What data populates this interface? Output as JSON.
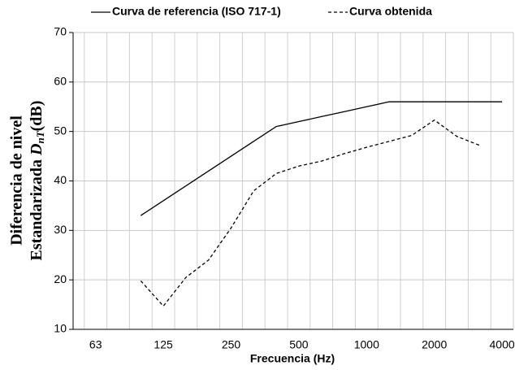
{
  "chart_data": {
    "type": "line",
    "x_label": "Frecuencia (Hz)",
    "y_label": {
      "line1": "Diferencia de nivel",
      "line2": "Estandarizada",
      "symbol": "D",
      "subscript": "nT",
      "unit": "(dB)"
    },
    "categories": [
      null,
      63,
      null,
      null,
      125,
      null,
      null,
      250,
      null,
      null,
      500,
      null,
      null,
      1000,
      null,
      null,
      2000,
      null,
      null,
      4000
    ],
    "series": [
      {
        "name": "Curva de referencia (ISO 717-1)",
        "color": "#000000",
        "linestyle": "solid",
        "values": [
          null,
          null,
          null,
          33,
          36,
          39,
          42,
          45,
          48,
          51,
          52,
          53,
          54,
          55,
          56,
          56,
          56,
          56,
          56,
          56
        ]
      },
      {
        "name": "Curva obtenida",
        "color": "#000000",
        "linestyle": "dashed",
        "values": [
          null,
          null,
          null,
          19.8,
          14.7,
          20.5,
          24,
          30.5,
          38,
          41.5,
          43,
          44,
          45.5,
          46.8,
          48,
          49.2,
          52.3,
          49,
          47.2,
          null
        ]
      }
    ],
    "ylim": [
      10,
      70
    ],
    "yticks": [
      10,
      20,
      30,
      40,
      50,
      60,
      70
    ],
    "grid": true,
    "legend": "top"
  }
}
